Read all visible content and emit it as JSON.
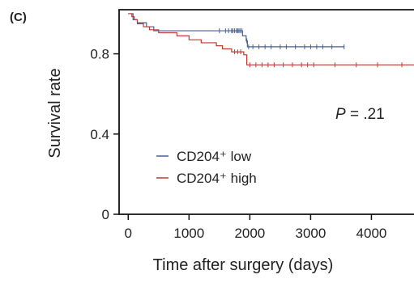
{
  "panel_label": "(C)",
  "chart_data": {
    "type": "line",
    "subtype": "kaplan-meier",
    "title": "",
    "xlabel": "Time after surgery (days)",
    "ylabel": "Survival rate",
    "xlim": [
      -150,
      4700
    ],
    "ylim": [
      0,
      1.02
    ],
    "x_ticks": [
      0,
      1000,
      2000,
      3000,
      4000
    ],
    "x_tick_labels": [
      "0",
      "1000",
      "2000",
      "3000",
      "4000"
    ],
    "y_ticks": [
      0,
      0.4,
      0.8
    ],
    "y_tick_labels": [
      "0",
      "0.4",
      "0.8"
    ],
    "grid": false,
    "legend_position": "bottom-left",
    "annotation": {
      "prefix": "P",
      "text": " = .21"
    },
    "series": [
      {
        "name": "CD204⁺ low",
        "color": "#4a5f96",
        "steps": [
          [
            0,
            1.0
          ],
          [
            80,
            0.97
          ],
          [
            150,
            0.955
          ],
          [
            300,
            0.935
          ],
          [
            420,
            0.915
          ],
          [
            1850,
            0.915
          ],
          [
            1880,
            0.89
          ],
          [
            1940,
            0.865
          ],
          [
            1960,
            0.835
          ],
          [
            3550,
            0.835
          ]
        ],
        "censors": [
          1500,
          1600,
          1650,
          1700,
          1720,
          1750,
          1780,
          1800,
          1820,
          1840,
          1870,
          1950,
          1980,
          2050,
          2150,
          2250,
          2350,
          2500,
          2600,
          2750,
          2900,
          3000,
          3100,
          3200,
          3350,
          3550
        ]
      },
      {
        "name": "CD204⁺ high",
        "color": "#c03a30",
        "steps": [
          [
            0,
            1.0
          ],
          [
            60,
            0.985
          ],
          [
            100,
            0.97
          ],
          [
            150,
            0.95
          ],
          [
            250,
            0.935
          ],
          [
            350,
            0.92
          ],
          [
            500,
            0.905
          ],
          [
            800,
            0.89
          ],
          [
            1000,
            0.87
          ],
          [
            1200,
            0.855
          ],
          [
            1450,
            0.84
          ],
          [
            1550,
            0.825
          ],
          [
            1700,
            0.81
          ],
          [
            1900,
            0.795
          ],
          [
            1950,
            0.745
          ],
          [
            4700,
            0.745
          ]
        ],
        "censors": [
          1750,
          1800,
          1850,
          2000,
          2100,
          2200,
          2300,
          2400,
          2550,
          2700,
          2850,
          2950,
          3050,
          3400,
          3750,
          4100,
          4500
        ]
      }
    ]
  }
}
